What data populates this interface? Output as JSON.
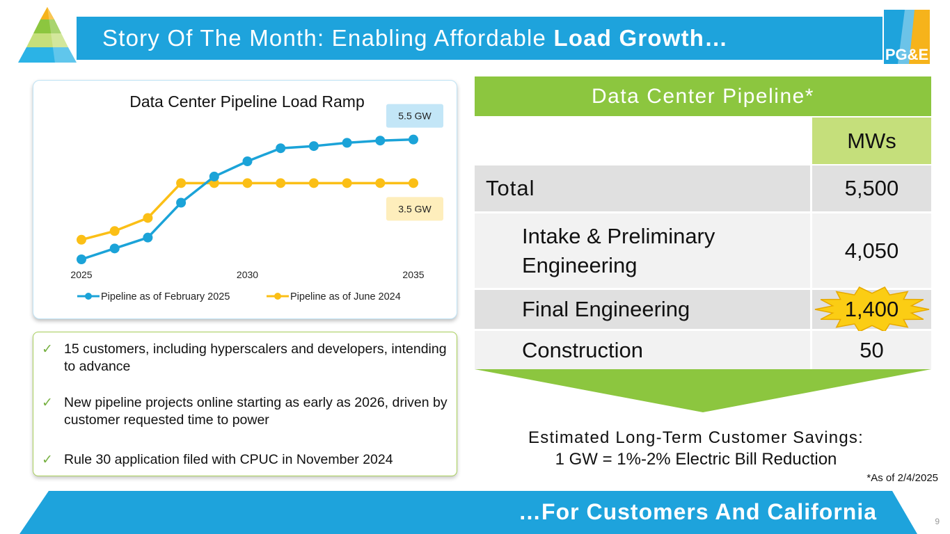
{
  "header": {
    "title_regular": "Story Of The Month: Enabling Affordable ",
    "title_bold": "Load Growth…",
    "logo_text": "PG&E"
  },
  "chart_data": {
    "type": "line",
    "title": "Data Center Pipeline Load Ramp",
    "x": [
      2025,
      2026,
      2027,
      2028,
      2029,
      2030,
      2031,
      2032,
      2033,
      2034,
      2035
    ],
    "tick_labels": [
      "2025",
      "2030",
      "2035"
    ],
    "ylim": [
      0,
      6
    ],
    "series": [
      {
        "name": "Pipeline as of February 2025",
        "color": "#1ba3d8",
        "values": [
          0.0,
          0.5,
          1.0,
          2.6,
          3.8,
          4.5,
          5.1,
          5.2,
          5.35,
          5.45,
          5.5
        ]
      },
      {
        "name": "Pipeline as of June 2024",
        "color": "#fbbf16",
        "values": [
          0.9,
          1.3,
          1.9,
          3.5,
          3.5,
          3.5,
          3.5,
          3.5,
          3.5,
          3.5,
          3.5
        ]
      }
    ],
    "annotations": [
      {
        "text": "5.5 GW",
        "color": "#c3e6f7"
      },
      {
        "text": "3.5 GW",
        "color": "#feeebc"
      }
    ]
  },
  "bullets": [
    {
      "check": "✓",
      "text": "15 customers, including hyperscalers and developers, intending to advance"
    },
    {
      "check": "✓",
      "text": "New pipeline projects online starting as early as 2026, driven by customer requested time to power"
    },
    {
      "check": "✓",
      "text": "Rule 30 application filed with CPUC in November 2024"
    }
  ],
  "table": {
    "title": "Data Center Pipeline*",
    "column_header": "MWs",
    "rows": [
      {
        "label": "Total",
        "value": "5,500"
      },
      {
        "label": "Intake & Preliminary Engineering",
        "value": "4,050"
      },
      {
        "label": "Final Engineering",
        "value": "1,400"
      },
      {
        "label": "Construction",
        "value": "50"
      }
    ]
  },
  "savings": {
    "line1": "Estimated Long-Term Customer Savings:",
    "line2": "1 GW = 1%-2% Electric Bill Reduction"
  },
  "footnote": "*As of 2/4/2025",
  "footer": {
    "text": "…For Customers And California",
    "page_number": "9"
  },
  "colors": {
    "brand_blue": "#1ea3dc",
    "brand_green": "#8cc63f",
    "light_green": "#c5df7b",
    "burst_yellow": "#fbcd14"
  }
}
